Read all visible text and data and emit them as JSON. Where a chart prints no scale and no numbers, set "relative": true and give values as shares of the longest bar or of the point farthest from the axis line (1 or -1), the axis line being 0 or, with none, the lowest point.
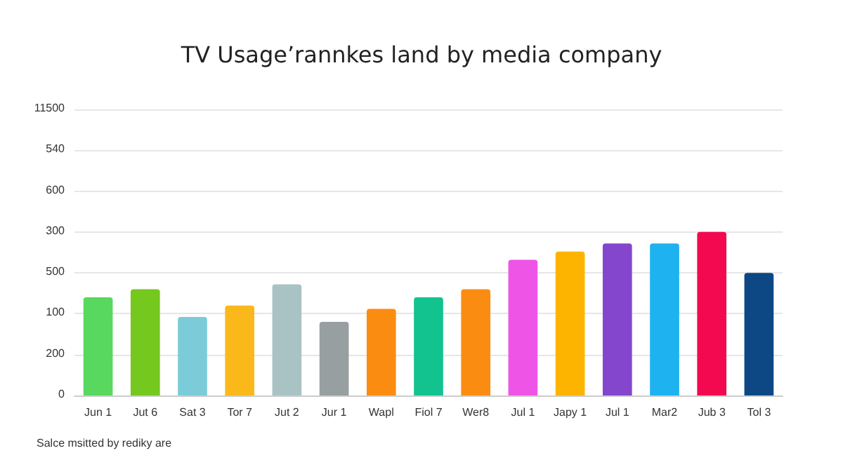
{
  "chart_data": {
    "type": "bar",
    "title": "TV Usage’rannkes land by media company",
    "categories": [
      "Jun 1",
      "Jut 6",
      "Sat 3",
      "Tor 7",
      "Jut 2",
      "Jur 1",
      "Wapl",
      "Fiol 7",
      "Wer8",
      "Jul 1",
      "Japy 1",
      "Jul 1",
      "Mar2",
      "Jub 3",
      "Tol 3"
    ],
    "relative": true,
    "values": [
      0.6,
      0.65,
      0.48,
      0.55,
      0.68,
      0.45,
      0.53,
      0.6,
      0.65,
      0.83,
      0.88,
      0.93,
      0.93,
      1,
      0.75
    ],
    "colors": [
      "#58d85e",
      "#74c81e",
      "#7ccbd8",
      "#fbb81a",
      "#a9c3c5",
      "#979fa0",
      "#fb8c12",
      "#12c38f",
      "#fb8c12",
      "#ee55e6",
      "#fdb400",
      "#8346cc",
      "#1fb2f0",
      "#f3094f",
      "#0d4784"
    ],
    "grid": "y",
    "annotations": [
      "0",
      "200",
      "100",
      "500",
      "300",
      "600",
      "540",
      "11500",
      "Salce msitted by rediky are"
    ]
  }
}
